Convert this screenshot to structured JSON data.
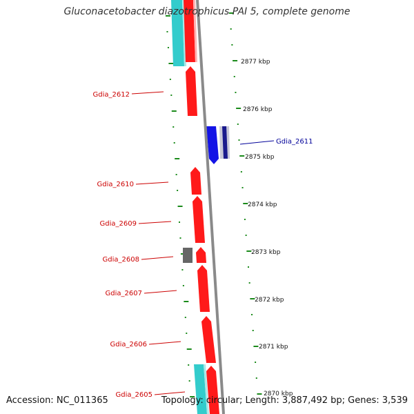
{
  "title": "Gluconacetobacter diazotrophicus PAI 5, complete genome",
  "footer": {
    "accession": "Accession: NC_011365",
    "topology": "Topology: circular; Length: 3,887,492 bp; Genes: 3,539"
  },
  "colors": {
    "forward_gene": "#ff1a1a",
    "reverse_gene": "#1414e6",
    "rna": "#33cccc",
    "pseudo": "#666666",
    "ticks": "#1a8a1a",
    "backbone": "#8a8a8a",
    "label_forward": "#cc0000",
    "label_reverse": "#000099"
  },
  "scale": {
    "ticks": [
      {
        "label": "2877 kbp",
        "kbp": 2877
      },
      {
        "label": "2876 kbp",
        "kbp": 2876
      },
      {
        "label": "2875 kbp",
        "kbp": 2875
      },
      {
        "label": "2874 kbp",
        "kbp": 2874
      },
      {
        "label": "2873 kbp",
        "kbp": 2873
      },
      {
        "label": "2872 kbp",
        "kbp": 2872
      },
      {
        "label": "2871 kbp",
        "kbp": 2871
      },
      {
        "label": "2870 kbp",
        "kbp": 2870
      }
    ]
  },
  "gene_labels": [
    {
      "name": "Gdia_2612",
      "strand": "forward"
    },
    {
      "name": "Gdia_2611",
      "strand": "reverse"
    },
    {
      "name": "Gdia_2610",
      "strand": "forward"
    },
    {
      "name": "Gdia_2609",
      "strand": "forward"
    },
    {
      "name": "Gdia_2608",
      "strand": "forward"
    },
    {
      "name": "Gdia_2607",
      "strand": "forward"
    },
    {
      "name": "Gdia_2606",
      "strand": "forward"
    },
    {
      "name": "Gdia_2605",
      "strand": "forward"
    }
  ]
}
